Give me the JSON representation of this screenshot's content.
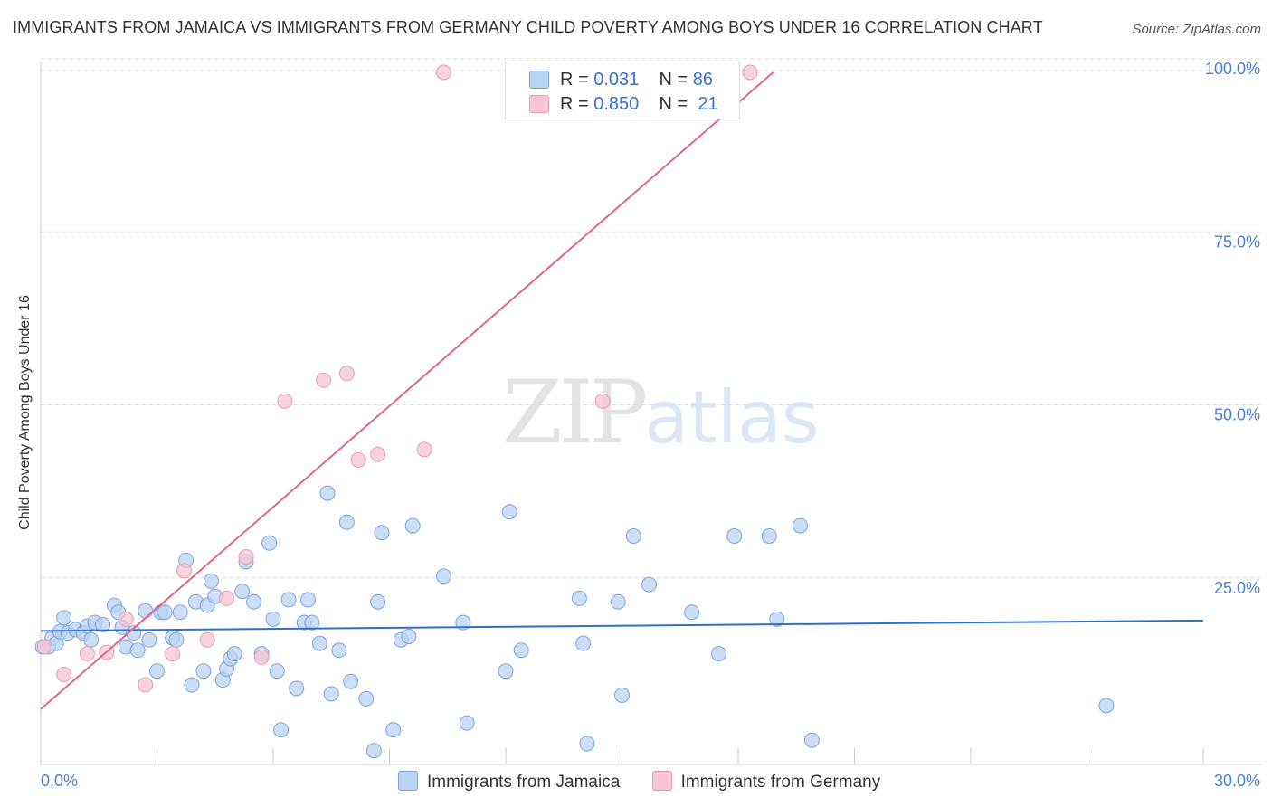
{
  "title": "IMMIGRANTS FROM JAMAICA VS IMMIGRANTS FROM GERMANY CHILD POVERTY AMONG BOYS UNDER 16 CORRELATION CHART",
  "source": "Source: ZipAtlas.com",
  "watermark": {
    "zip": "ZIP",
    "atlas": "atlas"
  },
  "colors": {
    "jamaica_fill": "#b9d3f2",
    "jamaica_stroke": "#7aa5e0",
    "jamaica_line": "#2f6fcf",
    "germany_fill": "#f7c4d3",
    "germany_stroke": "#ec9ab4",
    "germany_line": "#e2658f",
    "axis_text": "#4a7fd4",
    "grid": "#dddddd"
  },
  "legend": {
    "rows": [
      {
        "r_label": "R =",
        "r_value": "0.031",
        "n_label": "N =",
        "n_value": "86"
      },
      {
        "r_label": "R =",
        "r_value": "0.850",
        "n_label": "N =",
        "n_value": "21"
      }
    ]
  },
  "chart_data": {
    "type": "scatter",
    "title": "IMMIGRANTS FROM JAMAICA VS IMMIGRANTS FROM GERMANY CHILD POVERTY AMONG BOYS UNDER 16 CORRELATION CHART",
    "xlabel": "",
    "ylabel": "Child Poverty Among Boys Under 16",
    "xlim": [
      0,
      30
    ],
    "ylim": [
      0,
      100
    ],
    "x_tick_labels": [
      "0.0%",
      "30.0%"
    ],
    "y_ticks": [
      25,
      50,
      75,
      100
    ],
    "y_tick_labels": [
      "25.0%",
      "50.0%",
      "75.0%",
      "100.0%"
    ],
    "grid": true,
    "legend_position": "top-center",
    "series": [
      {
        "name": "Immigrants from Jamaica",
        "points": [
          [
            0.2,
            17.0
          ],
          [
            0.3,
            18.3
          ],
          [
            0.4,
            17.5
          ],
          [
            0.5,
            19.2
          ],
          [
            0.6,
            21.2
          ],
          [
            0.7,
            19.0
          ],
          [
            0.9,
            19.5
          ],
          [
            1.1,
            19.0
          ],
          [
            1.2,
            20.0
          ],
          [
            1.3,
            18.0
          ],
          [
            1.4,
            20.5
          ],
          [
            1.6,
            20.2
          ],
          [
            1.9,
            23.0
          ],
          [
            2.0,
            22.0
          ],
          [
            2.1,
            19.8
          ],
          [
            2.2,
            17.0
          ],
          [
            2.4,
            19.0
          ],
          [
            2.5,
            16.5
          ],
          [
            2.7,
            22.2
          ],
          [
            2.8,
            18.0
          ],
          [
            3.0,
            13.5
          ],
          [
            3.1,
            22.0
          ],
          [
            3.2,
            22.0
          ],
          [
            3.4,
            18.3
          ],
          [
            3.5,
            18.0
          ],
          [
            3.6,
            22.0
          ],
          [
            3.75,
            29.5
          ],
          [
            3.9,
            11.5
          ],
          [
            4.0,
            23.5
          ],
          [
            4.2,
            13.5
          ],
          [
            4.3,
            23.0
          ],
          [
            4.4,
            26.5
          ],
          [
            4.5,
            24.3
          ],
          [
            4.7,
            12.2
          ],
          [
            4.8,
            13.8
          ],
          [
            4.9,
            15.3
          ],
          [
            5.0,
            16.0
          ],
          [
            5.2,
            25.0
          ],
          [
            5.3,
            29.3
          ],
          [
            5.5,
            23.5
          ],
          [
            5.7,
            16.0
          ],
          [
            5.9,
            32.0
          ],
          [
            6.0,
            21.0
          ],
          [
            6.1,
            13.5
          ],
          [
            6.2,
            5.0
          ],
          [
            6.4,
            23.8
          ],
          [
            6.6,
            11.0
          ],
          [
            6.8,
            20.5
          ],
          [
            6.9,
            23.8
          ],
          [
            7.0,
            20.5
          ],
          [
            7.2,
            17.5
          ],
          [
            7.4,
            39.2
          ],
          [
            7.5,
            10.2
          ],
          [
            7.7,
            16.5
          ],
          [
            7.9,
            35.0
          ],
          [
            8.0,
            12.0
          ],
          [
            8.4,
            9.5
          ],
          [
            8.6,
            2.0
          ],
          [
            8.7,
            23.5
          ],
          [
            8.8,
            33.5
          ],
          [
            9.1,
            5.0
          ],
          [
            9.3,
            18.0
          ],
          [
            9.5,
            18.5
          ],
          [
            9.6,
            34.5
          ],
          [
            10.4,
            27.2
          ],
          [
            10.9,
            20.5
          ],
          [
            11.0,
            6.0
          ],
          [
            12.0,
            13.5
          ],
          [
            12.1,
            36.5
          ],
          [
            12.4,
            16.5
          ],
          [
            13.9,
            24.0
          ],
          [
            14.0,
            17.5
          ],
          [
            14.1,
            3.0
          ],
          [
            14.9,
            23.5
          ],
          [
            15.0,
            10.0
          ],
          [
            15.3,
            33.0
          ],
          [
            15.7,
            26.0
          ],
          [
            16.8,
            22.0
          ],
          [
            17.5,
            16.0
          ],
          [
            17.9,
            33.0
          ],
          [
            18.8,
            33.0
          ],
          [
            19.0,
            21.0
          ],
          [
            19.6,
            34.5
          ],
          [
            19.9,
            3.5
          ],
          [
            27.5,
            8.5
          ],
          [
            0.05,
            17.0
          ]
        ],
        "trend": {
          "x": [
            0,
            30
          ],
          "y": [
            19.3,
            20.8
          ]
        }
      },
      {
        "name": "Immigrants from Germany",
        "points": [
          [
            0.1,
            17.0
          ],
          [
            0.6,
            13.0
          ],
          [
            1.2,
            16.0
          ],
          [
            1.7,
            16.2
          ],
          [
            2.2,
            21.0
          ],
          [
            2.7,
            11.5
          ],
          [
            3.4,
            16.0
          ],
          [
            3.7,
            28.0
          ],
          [
            4.3,
            18.0
          ],
          [
            4.8,
            24.0
          ],
          [
            5.3,
            30.0
          ],
          [
            5.7,
            15.5
          ],
          [
            6.3,
            52.5
          ],
          [
            7.3,
            55.5
          ],
          [
            7.9,
            56.5
          ],
          [
            8.2,
            44.0
          ],
          [
            8.7,
            44.8
          ],
          [
            9.9,
            45.5
          ],
          [
            10.4,
            100.0
          ],
          [
            14.5,
            52.5
          ],
          [
            18.3,
            100.0
          ]
        ],
        "trend": {
          "x": [
            0,
            18.9
          ],
          "y": [
            8.0,
            100.0
          ]
        }
      }
    ]
  }
}
